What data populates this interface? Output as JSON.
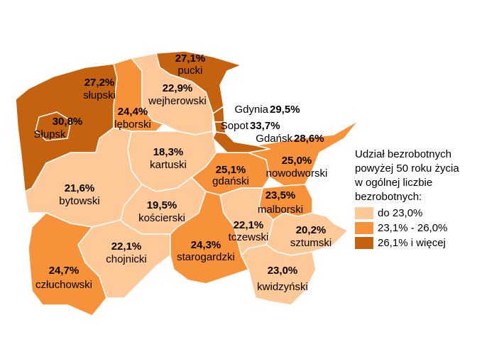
{
  "map": {
    "regions": [
      {
        "name": "słupski",
        "value": 27.2,
        "value_label": "27,2%",
        "color": "#c5620f"
      },
      {
        "name": "pucki",
        "value": 27.1,
        "value_label": "27,1%",
        "color": "#c5620f"
      },
      {
        "name": "lęborski",
        "value": 24.4,
        "value_label": "24,4%",
        "color": "#f7923b"
      },
      {
        "name": "wejherowski",
        "value": 22.9,
        "value_label": "22,9%",
        "color": "#fdc998"
      },
      {
        "name": "kartuski",
        "value": 18.3,
        "value_label": "18,3%",
        "color": "#fdc998"
      },
      {
        "name": "gdański",
        "value": 25.1,
        "value_label": "25,1%",
        "color": "#f7923b"
      },
      {
        "name": "nowodworski",
        "value": 25.0,
        "value_label": "25,0%",
        "color": "#f7923b"
      },
      {
        "name": "bytowski",
        "value": 21.6,
        "value_label": "21,6%",
        "color": "#fdc998"
      },
      {
        "name": "kościerski",
        "value": 19.5,
        "value_label": "19,5%",
        "color": "#fdc998"
      },
      {
        "name": "chojnicki",
        "value": 22.1,
        "value_label": "22,1%",
        "color": "#fdc998"
      },
      {
        "name": "człuchowski",
        "value": 24.7,
        "value_label": "24,7%",
        "color": "#f7923b"
      },
      {
        "name": "starogardzki",
        "value": 24.3,
        "value_label": "24,3%",
        "color": "#f7923b"
      },
      {
        "name": "tczewski",
        "value": 22.1,
        "value_label": "22,1%",
        "color": "#fdc998"
      },
      {
        "name": "malborski",
        "value": 23.5,
        "value_label": "23,5%",
        "color": "#f7923b"
      },
      {
        "name": "sztumski",
        "value": 20.2,
        "value_label": "20,2%",
        "color": "#fdc998"
      },
      {
        "name": "kwidzyński",
        "value": 23.0,
        "value_label": "23,0%",
        "color": "#fdc998"
      },
      {
        "name": "Słupsk",
        "value": 30.8,
        "value_label": "30,8%",
        "color": "#c5620f"
      }
    ],
    "cities": [
      {
        "name": "Gdynia",
        "value": 29.5,
        "value_label": "29,5%",
        "color": "#c5620f"
      },
      {
        "name": "Sopot",
        "value": 33.7,
        "value_label": "33,7%",
        "color": "#c5620f"
      },
      {
        "name": "Gdańsk",
        "value": 28.6,
        "value_label": "28,6%",
        "color": "#c5620f"
      }
    ],
    "legend": {
      "title": [
        "Udział bezrobotnych",
        "powyżej 50 roku życia",
        "w ogólnej liczbie",
        "bezrobotnych:"
      ],
      "classes": [
        {
          "label": "do 23,0%",
          "color": "#fdc998"
        },
        {
          "label": "23,1% - 26,0%",
          "color": "#f7923b"
        },
        {
          "label": "26,1% i więcej",
          "color": "#c5620f"
        }
      ]
    }
  }
}
